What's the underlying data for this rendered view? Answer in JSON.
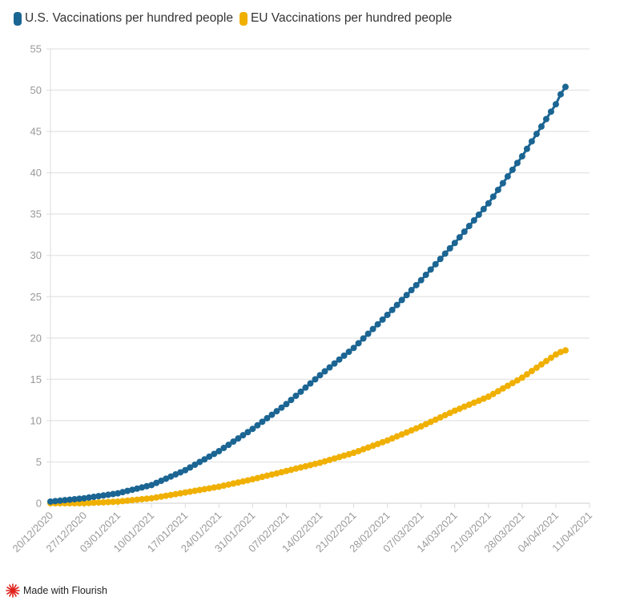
{
  "chart_data": {
    "type": "line",
    "title": "",
    "xlabel": "",
    "ylabel": "",
    "ylim": [
      0,
      55
    ],
    "yticks": [
      "0",
      "5",
      "10",
      "15",
      "20",
      "25",
      "30",
      "35",
      "40",
      "45",
      "50",
      "55"
    ],
    "xlim": [
      "20/12/2020",
      "11/04/2021"
    ],
    "xticks": [
      "20/12/2020",
      "27/12/2020",
      "03/01/2021",
      "10/01/2021",
      "17/01/2021",
      "24/01/2021",
      "31/01/2021",
      "07/02/2021",
      "14/02/2021",
      "21/02/2021",
      "28/02/2021",
      "07/03/2021",
      "14/03/2021",
      "21/03/2021",
      "28/03/2021",
      "04/04/2021",
      "11/04/2021"
    ],
    "grid": true,
    "legend": "top-left",
    "markers": true,
    "dates": [
      "20/12/2020",
      "21/12/2020",
      "22/12/2020",
      "23/12/2020",
      "24/12/2020",
      "25/12/2020",
      "26/12/2020",
      "27/12/2020",
      "28/12/2020",
      "29/12/2020",
      "30/12/2020",
      "31/12/2020",
      "01/01/2021",
      "02/01/2021",
      "03/01/2021",
      "04/01/2021",
      "05/01/2021",
      "06/01/2021",
      "07/01/2021",
      "08/01/2021",
      "09/01/2021",
      "10/01/2021",
      "11/01/2021",
      "12/01/2021",
      "13/01/2021",
      "14/01/2021",
      "15/01/2021",
      "16/01/2021",
      "17/01/2021",
      "18/01/2021",
      "19/01/2021",
      "20/01/2021",
      "21/01/2021",
      "22/01/2021",
      "23/01/2021",
      "24/01/2021",
      "25/01/2021",
      "26/01/2021",
      "27/01/2021",
      "28/01/2021",
      "29/01/2021",
      "30/01/2021",
      "31/01/2021",
      "01/02/2021",
      "02/02/2021",
      "03/02/2021",
      "04/02/2021",
      "05/02/2021",
      "06/02/2021",
      "07/02/2021",
      "08/02/2021",
      "09/02/2021",
      "10/02/2021",
      "11/02/2021",
      "12/02/2021",
      "13/02/2021",
      "14/02/2021",
      "15/02/2021",
      "16/02/2021",
      "17/02/2021",
      "18/02/2021",
      "19/02/2021",
      "20/02/2021",
      "21/02/2021",
      "22/02/2021",
      "23/02/2021",
      "24/02/2021",
      "25/02/2021",
      "26/02/2021",
      "27/02/2021",
      "28/02/2021",
      "01/03/2021",
      "02/03/2021",
      "03/03/2021",
      "04/03/2021",
      "05/03/2021",
      "06/03/2021",
      "07/03/2021",
      "08/03/2021",
      "09/03/2021",
      "10/03/2021",
      "11/03/2021",
      "12/03/2021",
      "13/03/2021",
      "14/03/2021",
      "15/03/2021",
      "16/03/2021",
      "17/03/2021",
      "18/03/2021",
      "19/03/2021",
      "20/03/2021",
      "21/03/2021",
      "22/03/2021",
      "23/03/2021",
      "24/03/2021",
      "25/03/2021",
      "26/03/2021",
      "27/03/2021",
      "28/03/2021",
      "29/03/2021",
      "30/03/2021",
      "31/03/2021",
      "01/04/2021",
      "02/04/2021",
      "03/04/2021",
      "04/04/2021",
      "05/04/2021",
      "06/04/2021"
    ],
    "series": [
      {
        "name": "U.S. Vaccinations per hundred people",
        "color": "#1b6593",
        "values": [
          0.2,
          0.26,
          0.31,
          0.37,
          0.43,
          0.49,
          0.54,
          0.6,
          0.69,
          0.77,
          0.86,
          0.94,
          1.03,
          1.11,
          1.2,
          1.34,
          1.49,
          1.63,
          1.77,
          1.91,
          2.06,
          2.2,
          2.46,
          2.71,
          2.97,
          3.23,
          3.49,
          3.74,
          4.0,
          4.33,
          4.66,
          4.99,
          5.31,
          5.64,
          5.97,
          6.3,
          6.69,
          7.07,
          7.46,
          7.84,
          8.23,
          8.61,
          9.0,
          9.43,
          9.86,
          10.29,
          10.71,
          11.14,
          11.57,
          12.0,
          12.5,
          13.0,
          13.5,
          14.0,
          14.5,
          15.0,
          15.5,
          15.97,
          16.44,
          16.91,
          17.39,
          17.86,
          18.33,
          18.8,
          19.37,
          19.94,
          20.51,
          21.09,
          21.66,
          22.23,
          22.8,
          23.4,
          24.0,
          24.6,
          25.2,
          25.8,
          26.4,
          27.0,
          27.64,
          28.29,
          28.93,
          29.57,
          30.21,
          30.86,
          31.5,
          32.19,
          32.87,
          33.56,
          34.24,
          34.93,
          35.61,
          36.3,
          37.11,
          37.93,
          38.74,
          39.56,
          40.37,
          41.19,
          42.0,
          42.9,
          43.8,
          44.7,
          45.6,
          46.5,
          47.4,
          48.3,
          49.5,
          50.4
        ]
      },
      {
        "name": "EU Vaccinations per hundred people",
        "color": "#f0b000",
        "values": [
          0,
          0,
          0,
          0,
          0,
          0,
          0,
          0,
          0.03,
          0.06,
          0.09,
          0.11,
          0.14,
          0.17,
          0.2,
          0.26,
          0.31,
          0.37,
          0.43,
          0.49,
          0.54,
          0.6,
          0.7,
          0.8,
          0.9,
          1.0,
          1.1,
          1.2,
          1.3,
          1.4,
          1.5,
          1.6,
          1.7,
          1.8,
          1.9,
          2.0,
          2.13,
          2.26,
          2.39,
          2.51,
          2.64,
          2.77,
          2.9,
          3.04,
          3.19,
          3.33,
          3.47,
          3.61,
          3.76,
          3.9,
          4.04,
          4.19,
          4.33,
          4.47,
          4.61,
          4.76,
          4.9,
          5.07,
          5.24,
          5.41,
          5.59,
          5.76,
          5.93,
          6.1,
          6.31,
          6.53,
          6.74,
          6.96,
          7.17,
          7.39,
          7.6,
          7.84,
          8.09,
          8.33,
          8.57,
          8.81,
          9.06,
          9.3,
          9.57,
          9.84,
          10.11,
          10.39,
          10.66,
          10.93,
          11.2,
          11.44,
          11.69,
          11.93,
          12.17,
          12.41,
          12.66,
          12.9,
          13.23,
          13.56,
          13.89,
          14.21,
          14.54,
          14.87,
          15.2,
          15.6,
          16.0,
          16.4,
          16.8,
          17.2,
          17.6,
          18.0,
          18.3,
          18.5
        ]
      }
    ]
  },
  "footer": {
    "label": "Made with Flourish",
    "icon": "flourish-logo-icon",
    "icon_color": "#e0201b"
  }
}
